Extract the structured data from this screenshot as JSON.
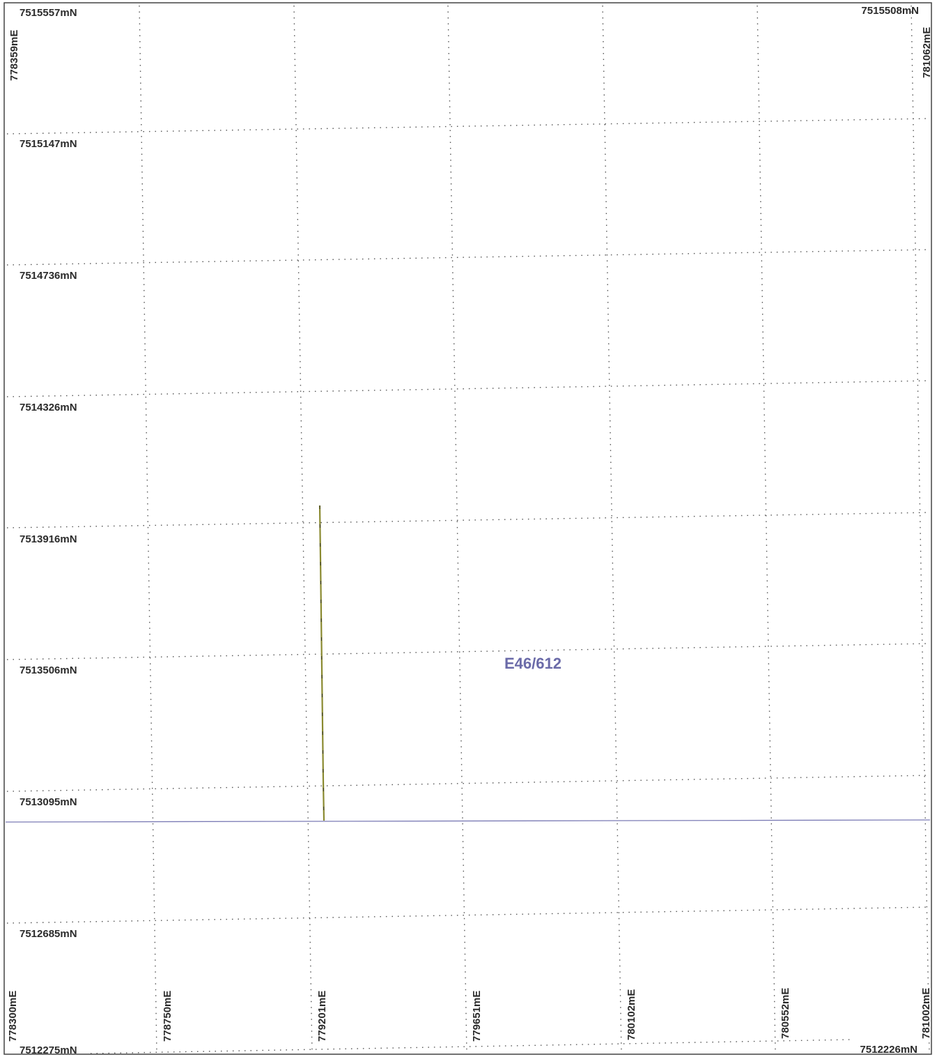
{
  "map": {
    "tenement_label": "E46/612",
    "colors": {
      "grid": "#555555",
      "frame": "#444444",
      "boundary": "#7b7bb5",
      "tenement_text": "#6a6aa8",
      "trace": "#8a8a30"
    },
    "northing_labels": [
      "7515557mN",
      "7515147mN",
      "7514736mN",
      "7514326mN",
      "7513916mN",
      "7513506mN",
      "7513095mN",
      "7512685mN",
      "7512275mN"
    ],
    "corner_northing_labels": {
      "top_right": "7515508mN",
      "bottom_right": "7512226mN"
    },
    "easting_labels_bottom": [
      "778300mE",
      "778750mE",
      "779201mE",
      "779651mE",
      "780102mE",
      "780552mE",
      "781002mE"
    ],
    "easting_labels_top": {
      "left": "778359mE",
      "right": "781062mE"
    }
  }
}
